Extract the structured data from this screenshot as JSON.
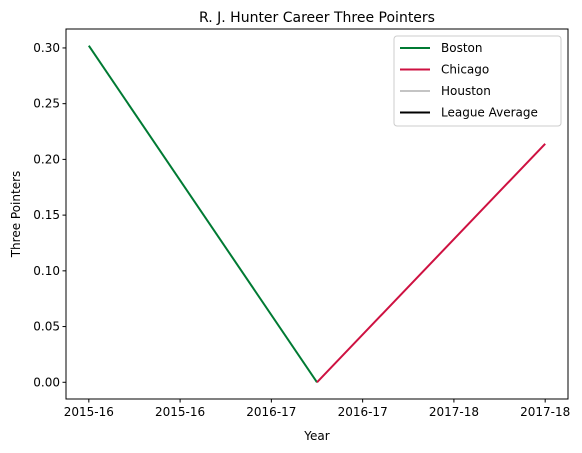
{
  "chart_data": {
    "type": "line",
    "title": "R. J. Hunter Career Three Pointers",
    "xlabel": "Year",
    "ylabel": "Three Pointers",
    "x_tick_labels": [
      "2015-16",
      "2015-16",
      "2016-17",
      "2016-17",
      "2017-18",
      "2017-18"
    ],
    "xlim": [
      -0.1,
      2.1
    ],
    "ylim": [
      -0.015,
      0.317
    ],
    "y_ticks": [
      0.0,
      0.05,
      0.1,
      0.15,
      0.2,
      0.25,
      0.3
    ],
    "y_tick_labels": [
      "0.00",
      "0.05",
      "0.10",
      "0.15",
      "0.20",
      "0.25",
      "0.30"
    ],
    "grid": false,
    "legend_placement": "top-right",
    "series": [
      {
        "name": "Boston",
        "color": "#007A33",
        "x": [
          0,
          1
        ],
        "y": [
          0.302,
          0.0
        ]
      },
      {
        "name": "Chicago",
        "color": "#CE1141",
        "x": [
          1,
          2
        ],
        "y": [
          0.0,
          0.214
        ]
      },
      {
        "name": "Houston",
        "color": "#C4C4C4",
        "x": [],
        "y": []
      },
      {
        "name": "League Average",
        "color": "#000000",
        "x": [],
        "y": []
      }
    ]
  }
}
